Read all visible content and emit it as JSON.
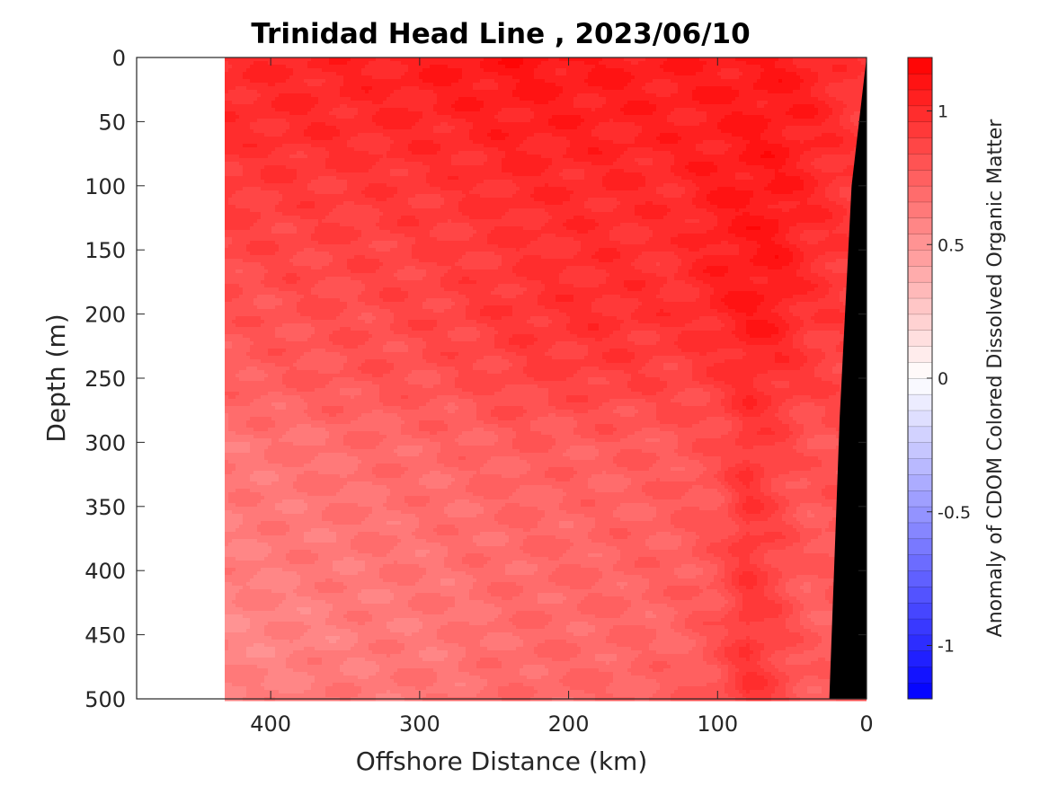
{
  "chart_data": {
    "type": "heatmap",
    "title": "Trinidad Head Line , 2023/06/10",
    "xlabel": "Offshore Distance (km)",
    "ylabel": "Depth (m)",
    "xlim": [
      490,
      0
    ],
    "ylim": [
      0,
      500
    ],
    "x_reversed": true,
    "y_reversed": true,
    "x_ticks": [
      400,
      300,
      200,
      100,
      0
    ],
    "y_ticks": [
      0,
      50,
      100,
      150,
      200,
      250,
      300,
      350,
      400,
      450,
      500
    ],
    "data_extent_km": [
      0,
      431
    ],
    "colorbar": {
      "label": "Anomaly of CDOM Colored Dissolved Organic Matter",
      "range": [
        -1.2,
        1.2
      ],
      "ticks": [
        {
          "value": 1,
          "label": "1"
        },
        {
          "value": 0.5,
          "label": "0.5"
        },
        {
          "value": 0,
          "label": "0"
        },
        {
          "value": -0.5,
          "label": "-0.5"
        },
        {
          "value": -1,
          "label": "-1"
        }
      ],
      "colormap": "blue-white-red",
      "low_color": "#0000ff",
      "mid_color": "#ffffff",
      "high_color": "#ff0000"
    },
    "bathymetry_color": "#000000",
    "bathymetry": [
      {
        "x": 0,
        "depth": 0
      },
      {
        "x": 10,
        "depth": 100
      },
      {
        "x": 18,
        "depth": 280
      },
      {
        "x": 25,
        "depth": 500
      }
    ],
    "anomaly_field": {
      "x": [
        431,
        380,
        330,
        280,
        230,
        180,
        130,
        100,
        80,
        60,
        40,
        20,
        10,
        0
      ],
      "depth": [
        0,
        50,
        100,
        150,
        200,
        250,
        300,
        350,
        400,
        450,
        500
      ],
      "values": [
        [
          1.0,
          1.02,
          1.04,
          1.08,
          1.1,
          1.08,
          1.06,
          1.06,
          1.08,
          1.08,
          1.05,
          1.0,
          0.95,
          0.9
        ],
        [
          0.98,
          1.0,
          1.0,
          1.02,
          1.05,
          1.04,
          1.04,
          1.06,
          1.08,
          1.08,
          1.04,
          0.98,
          0.95,
          0.9
        ],
        [
          0.92,
          0.92,
          0.93,
          0.95,
          1.0,
          1.0,
          1.0,
          1.06,
          1.08,
          1.08,
          1.02,
          0.96,
          0.93,
          0.9
        ],
        [
          0.86,
          0.87,
          0.88,
          0.9,
          0.95,
          0.98,
          0.96,
          1.05,
          1.08,
          1.08,
          1.0,
          0.95,
          0.92,
          0.9
        ],
        [
          0.8,
          0.82,
          0.84,
          0.88,
          0.95,
          0.98,
          0.96,
          1.02,
          1.08,
          1.06,
          0.96,
          0.92,
          0.9,
          0.9
        ],
        [
          0.75,
          0.77,
          0.8,
          0.82,
          0.88,
          0.9,
          0.88,
          0.92,
          1.0,
          0.96,
          0.9,
          0.88,
          0.88,
          0.88
        ],
        [
          0.64,
          0.66,
          0.7,
          0.72,
          0.76,
          0.76,
          0.78,
          0.82,
          0.95,
          0.88,
          0.8,
          0.82,
          0.82,
          0.82
        ],
        [
          0.62,
          0.64,
          0.66,
          0.68,
          0.72,
          0.72,
          0.76,
          0.8,
          0.95,
          0.86,
          0.78,
          0.8,
          0.8,
          0.8
        ],
        [
          0.6,
          0.62,
          0.64,
          0.66,
          0.7,
          0.72,
          0.74,
          0.8,
          0.94,
          0.86,
          0.76,
          0.78,
          0.78,
          0.78
        ],
        [
          0.56,
          0.58,
          0.62,
          0.64,
          0.7,
          0.7,
          0.72,
          0.8,
          0.95,
          0.86,
          0.76,
          0.74,
          0.74,
          0.74
        ],
        [
          0.6,
          0.62,
          0.64,
          0.66,
          0.7,
          0.72,
          0.74,
          0.82,
          0.95,
          0.88,
          0.78,
          0.76,
          0.76,
          0.76
        ]
      ]
    }
  }
}
